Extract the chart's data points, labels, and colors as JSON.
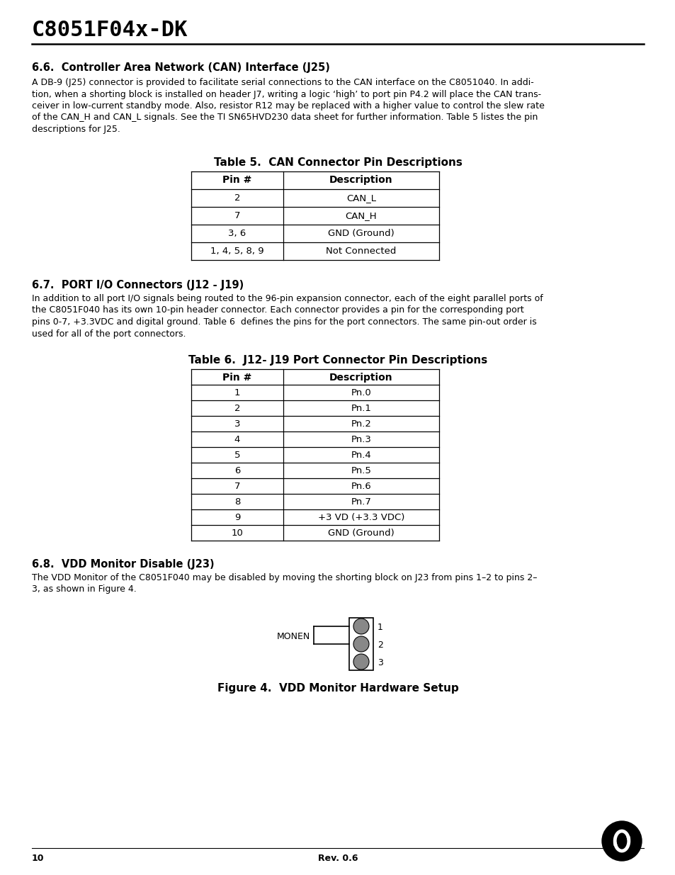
{
  "title": "C8051F04x-DK",
  "section1_heading": "6.6.  Controller Area Network (CAN) Interface (J25)",
  "section1_body_lines": [
    "A DB-9 (J25) connector is provided to facilitate serial connections to the CAN interface on the C8051040. In addi-",
    "tion, when a shorting block is installed on header J7, writing a logic ‘high’ to port pin P4.2 will place the CAN trans-",
    "ceiver in low-current standby mode. Also, resistor R12 may be replaced with a higher value to control the slew rate",
    "of the CAN_H and CAN_L signals. See the TI SN65HVD230 data sheet for further information. Table 5 listes the pin",
    "descriptions for J25."
  ],
  "table5_title": "Table 5.  CAN Connector Pin Descriptions",
  "table5_headers": [
    "Pin #",
    "Description"
  ],
  "table5_rows": [
    [
      "2",
      "CAN_L"
    ],
    [
      "7",
      "CAN_H"
    ],
    [
      "3, 6",
      "GND (Ground)"
    ],
    [
      "1, 4, 5, 8, 9",
      "Not Connected"
    ]
  ],
  "section2_heading": "6.7.  PORT I/O Connectors (J12 - J19)",
  "section2_body_lines": [
    "In addition to all port I/O signals being routed to the 96-pin expansion connector, each of the eight parallel ports of",
    "the C8051F040 has its own 10-pin header connector. Each connector provides a pin for the corresponding port",
    "pins 0-7, +3.3VDC and digital ground. Table 6  defines the pins for the port connectors. The same pin-out order is",
    "used for all of the port connectors."
  ],
  "table6_title": "Table 6.  J12- J19 Port Connector Pin Descriptions",
  "table6_headers": [
    "Pin #",
    "Description"
  ],
  "table6_rows": [
    [
      "1",
      "Pn.0"
    ],
    [
      "2",
      "Pn.1"
    ],
    [
      "3",
      "Pn.2"
    ],
    [
      "4",
      "Pn.3"
    ],
    [
      "5",
      "Pn.4"
    ],
    [
      "6",
      "Pn.5"
    ],
    [
      "7",
      "Pn.6"
    ],
    [
      "8",
      "Pn.7"
    ],
    [
      "9",
      "+3 VD (+3.3 VDC)"
    ],
    [
      "10",
      "GND (Ground)"
    ]
  ],
  "section3_heading": "6.8.  VDD Monitor Disable (J23)",
  "section3_body_lines": [
    "The VDD Monitor of the C8051F040 may be disabled by moving the shorting block on J23 from pins 1–2 to pins 2–",
    "3, as shown in Figure 4."
  ],
  "figure4_caption": "Figure 4.  VDD Monitor Hardware Setup",
  "figure4_label": "MONEN",
  "figure4_pins": [
    "1",
    "2",
    "3"
  ],
  "footer_page": "10",
  "footer_rev": "Rev. 0.6"
}
